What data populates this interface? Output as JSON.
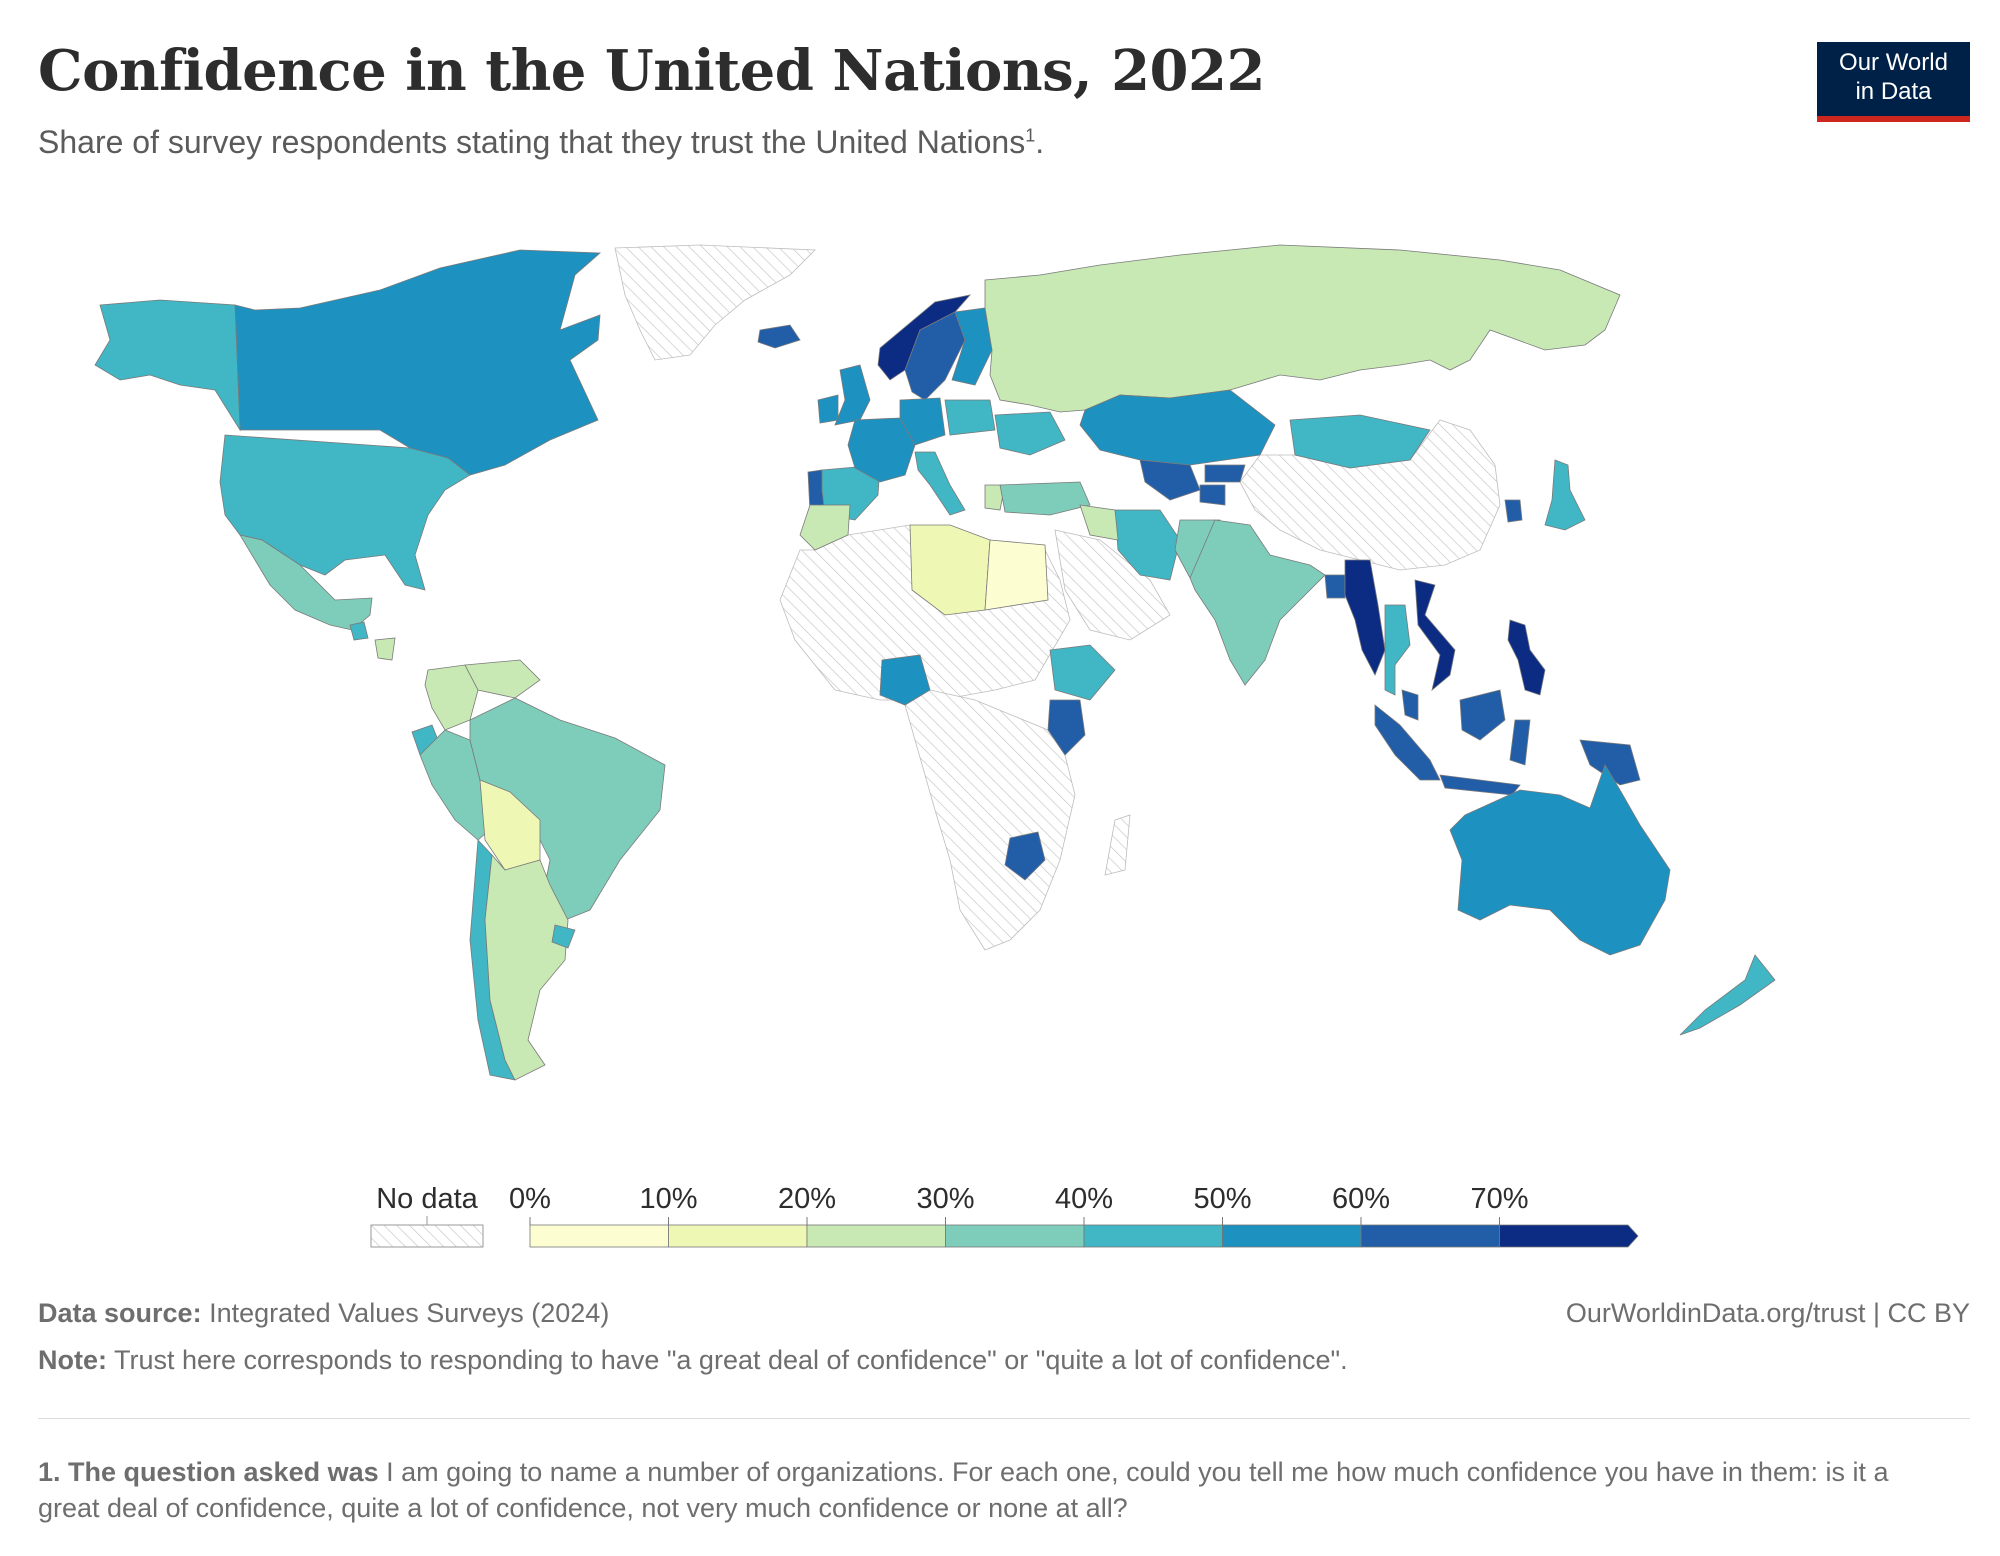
{
  "header": {
    "title": "Confidence in the United Nations, 2022",
    "subtitle": "Share of survey respondents stating that they trust the United Nations",
    "subtitle_footnote_mark": "1",
    "subtitle_end": "."
  },
  "logo": {
    "line1": "Our World",
    "line2": "in Data",
    "bg_color": "#002147",
    "accent_color": "#ce261e"
  },
  "legend": {
    "no_data_label": "No data",
    "bins": [
      {
        "label": "0%",
        "color": "#fdfdd2"
      },
      {
        "label": "10%",
        "color": "#eef7b4"
      },
      {
        "label": "20%",
        "color": "#c8e8b4"
      },
      {
        "label": "30%",
        "color": "#7ecdbb"
      },
      {
        "label": "40%",
        "color": "#41b6c4"
      },
      {
        "label": "50%",
        "color": "#1d91c0"
      },
      {
        "label": "60%",
        "color": "#225ea8"
      },
      {
        "label": "70%",
        "color": "#0c2c84"
      }
    ]
  },
  "map_data": {
    "type": "choropleth",
    "year": 2022,
    "unit": "%",
    "no_data_pattern": "hatched",
    "regions": [
      {
        "name": "Canada",
        "bin": "50%"
      },
      {
        "name": "United States",
        "bin": "40%"
      },
      {
        "name": "Mexico",
        "bin": "30%"
      },
      {
        "name": "Guatemala",
        "bin": "40%"
      },
      {
        "name": "Nicaragua",
        "bin": "20%"
      },
      {
        "name": "Colombia",
        "bin": "20%"
      },
      {
        "name": "Venezuela",
        "bin": "20%"
      },
      {
        "name": "Ecuador",
        "bin": "40%"
      },
      {
        "name": "Peru",
        "bin": "30%"
      },
      {
        "name": "Brazil",
        "bin": "30%"
      },
      {
        "name": "Bolivia",
        "bin": "10%"
      },
      {
        "name": "Chile",
        "bin": "40%"
      },
      {
        "name": "Argentina",
        "bin": "20%"
      },
      {
        "name": "Uruguay",
        "bin": "40%"
      },
      {
        "name": "Greenland",
        "bin": "no data"
      },
      {
        "name": "Iceland",
        "bin": "60%"
      },
      {
        "name": "Norway",
        "bin": "70%"
      },
      {
        "name": "Sweden",
        "bin": "60%"
      },
      {
        "name": "Finland",
        "bin": "50%"
      },
      {
        "name": "United Kingdom",
        "bin": "50%"
      },
      {
        "name": "Ireland",
        "bin": "50%"
      },
      {
        "name": "Portugal",
        "bin": "60%"
      },
      {
        "name": "Spain",
        "bin": "40%"
      },
      {
        "name": "France",
        "bin": "50%"
      },
      {
        "name": "Germany",
        "bin": "50%"
      },
      {
        "name": "Poland",
        "bin": "40%"
      },
      {
        "name": "Italy",
        "bin": "40%"
      },
      {
        "name": "Greece",
        "bin": "20%"
      },
      {
        "name": "Russia",
        "bin": "20%"
      },
      {
        "name": "Ukraine",
        "bin": "40%"
      },
      {
        "name": "Turkey",
        "bin": "30%"
      },
      {
        "name": "Kazakhstan",
        "bin": "50%"
      },
      {
        "name": "Uzbekistan",
        "bin": "60%"
      },
      {
        "name": "Kyrgyzstan",
        "bin": "60%"
      },
      {
        "name": "Tajikistan",
        "bin": "60%"
      },
      {
        "name": "Mongolia",
        "bin": "40%"
      },
      {
        "name": "China",
        "bin": "no data"
      },
      {
        "name": "Iran",
        "bin": "40%"
      },
      {
        "name": "Iraq",
        "bin": "20%"
      },
      {
        "name": "Saudi Arabia",
        "bin": "no data"
      },
      {
        "name": "Pakistan",
        "bin": "30%"
      },
      {
        "name": "India",
        "bin": "30%"
      },
      {
        "name": "Bangladesh",
        "bin": "60%"
      },
      {
        "name": "Myanmar",
        "bin": "70%"
      },
      {
        "name": "Thailand",
        "bin": "40%"
      },
      {
        "name": "Vietnam",
        "bin": "70%"
      },
      {
        "name": "Philippines",
        "bin": "70%"
      },
      {
        "name": "Malaysia",
        "bin": "60%"
      },
      {
        "name": "Indonesia",
        "bin": "60%"
      },
      {
        "name": "South Korea",
        "bin": "60%"
      },
      {
        "name": "Japan",
        "bin": "40%"
      },
      {
        "name": "Australia",
        "bin": "50%"
      },
      {
        "name": "New Zealand",
        "bin": "40%"
      },
      {
        "name": "Morocco",
        "bin": "20%"
      },
      {
        "name": "Libya",
        "bin": "10%"
      },
      {
        "name": "Egypt",
        "bin": "0%"
      },
      {
        "name": "Nigeria",
        "bin": "50%"
      },
      {
        "name": "Ethiopia",
        "bin": "40%"
      },
      {
        "name": "Kenya",
        "bin": "60%"
      },
      {
        "name": "Zimbabwe",
        "bin": "60%"
      }
    ]
  },
  "footer": {
    "source_label": "Data source:",
    "source_text": "Integrated Values Surveys (2024)",
    "url": "OurWorldinData.org/trust | CC BY",
    "note_label": "Note:",
    "note_text": "Trust here corresponds to responding to have \"a great deal of confidence\" or \"quite a lot of confidence\".",
    "footnote_label": "1. The question asked was",
    "footnote_text": "I am going to name a number of organizations. For each one, could you tell me how much confidence you have in them: is it a great deal of confidence, quite a lot of confidence, not very much confidence or none at all?"
  }
}
